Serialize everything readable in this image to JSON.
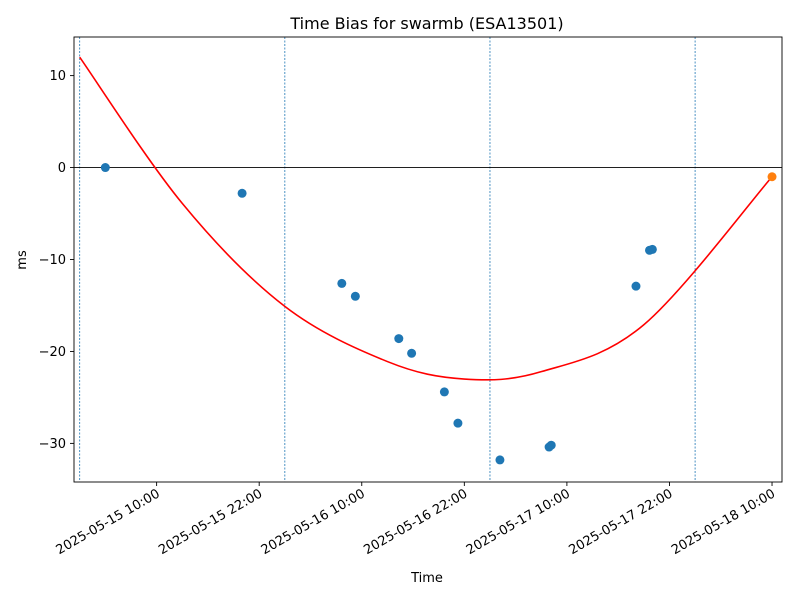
{
  "chart_data": {
    "type": "scatter",
    "title": "Time Bias for swarmb (ESA13501)",
    "xlabel": "Time",
    "ylabel": "ms",
    "x_ticks": [
      "2025-05-15 10:00",
      "2025-05-15 22:00",
      "2025-05-16 10:00",
      "2025-05-16 22:00",
      "2025-05-17 10:00",
      "2025-05-17 22:00",
      "2025-05-18 10:00"
    ],
    "y_ticks": [
      10,
      0,
      -10,
      -20,
      -30
    ],
    "xlim": [
      "2025-05-15 00:20",
      "2025-05-18 11:10"
    ],
    "ylim": [
      -34.2,
      14.2
    ],
    "grid": false,
    "zero_line": 0,
    "vertical_markers": [
      "2025-05-15 01:00",
      "2025-05-16 01:00",
      "2025-05-17 01:00",
      "2025-05-18 01:00"
    ],
    "series": [
      {
        "kind": "points",
        "color": "#1f77b4",
        "points": [
          {
            "x": "2025-05-15 04:00",
            "y": 0.0
          },
          {
            "x": "2025-05-15 20:00",
            "y": -2.8
          },
          {
            "x": "2025-05-16 07:40",
            "y": -12.6
          },
          {
            "x": "2025-05-16 09:15",
            "y": -14.0
          },
          {
            "x": "2025-05-16 14:20",
            "y": -18.6
          },
          {
            "x": "2025-05-16 15:50",
            "y": -20.2
          },
          {
            "x": "2025-05-16 19:40",
            "y": -24.4
          },
          {
            "x": "2025-05-16 21:15",
            "y": -27.8
          },
          {
            "x": "2025-05-17 02:10",
            "y": -31.8
          },
          {
            "x": "2025-05-17 07:55",
            "y": -30.4
          },
          {
            "x": "2025-05-17 08:10",
            "y": -30.2
          },
          {
            "x": "2025-05-17 18:05",
            "y": -12.9
          },
          {
            "x": "2025-05-17 19:40",
            "y": -9.0
          },
          {
            "x": "2025-05-17 20:00",
            "y": -8.9
          }
        ]
      },
      {
        "kind": "points",
        "color": "#ff7f0e",
        "points": [
          {
            "x": "2025-05-18 10:00",
            "y": -1.0
          }
        ]
      },
      {
        "kind": "fit_curve",
        "color": "#ff0000",
        "curve_points": [
          {
            "x": "2025-05-15 01:00",
            "y": 12.0
          },
          {
            "x": "2025-05-15 13:00",
            "y": -3.9
          },
          {
            "x": "2025-05-16 01:00",
            "y": -15.1
          },
          {
            "x": "2025-05-16 13:00",
            "y": -21.1
          },
          {
            "x": "2025-05-16 22:00",
            "y": -23.0
          },
          {
            "x": "2025-05-17 07:00",
            "y": -22.2
          },
          {
            "x": "2025-05-17 19:00",
            "y": -17.1
          },
          {
            "x": "2025-05-18 10:00",
            "y": -1.0
          }
        ]
      }
    ]
  }
}
